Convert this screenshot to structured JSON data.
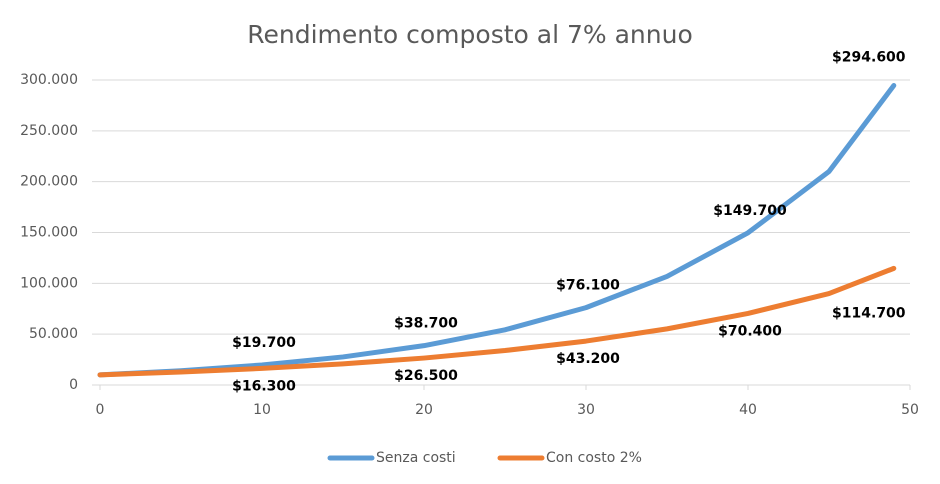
{
  "chart_data": {
    "type": "line",
    "title": "Rendimento composto al 7% annuo",
    "x": [
      0,
      5,
      10,
      15,
      20,
      25,
      30,
      35,
      40,
      45,
      49
    ],
    "series": [
      {
        "name": "Senza costi",
        "color": "#5b9bd5",
        "values": [
          10000,
          14000,
          19700,
          27600,
          38700,
          54300,
          76100,
          106800,
          149700,
          210000,
          294600
        ],
        "value_labels": [
          null,
          null,
          "$19.700",
          null,
          "$38.700",
          null,
          "$76.100",
          null,
          "$149.700",
          null,
          "$294.600"
        ]
      },
      {
        "name": "Con costo 2%",
        "color": "#ed7d31",
        "values": [
          10000,
          12800,
          16300,
          20800,
          26500,
          33900,
          43200,
          55200,
          70400,
          89900,
          114700
        ],
        "value_labels": [
          null,
          null,
          "$16.300",
          null,
          "$26.500",
          null,
          "$43.200",
          null,
          "$70.400",
          null,
          "$114.700"
        ]
      }
    ],
    "xlim": [
      0,
      50
    ],
    "xticks": [
      0,
      10,
      20,
      30,
      40,
      50
    ],
    "ylim": [
      0,
      300000
    ],
    "yticks": [
      0,
      {
        "value": 50000,
        "label": "50.000"
      },
      {
        "value": 100000,
        "label": "100.000"
      },
      {
        "value": 150000,
        "label": "150.000"
      },
      {
        "value": 200000,
        "label": "200.000"
      },
      {
        "value": 250000,
        "label": "250.000"
      },
      {
        "value": 300000,
        "label": "300.000"
      }
    ],
    "grid": true,
    "legend": "bottom"
  }
}
